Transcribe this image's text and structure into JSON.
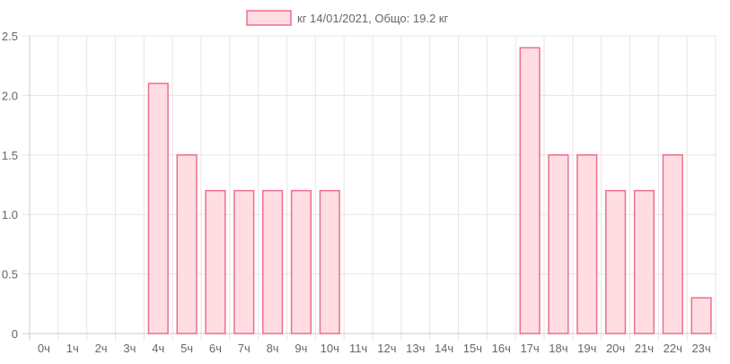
{
  "chart_data": {
    "type": "bar",
    "legend_label": "кг 14/01/2021, Общо: 19.2 кг",
    "legend_position": "top",
    "categories": [
      "0ч",
      "1ч",
      "2ч",
      "3ч",
      "4ч",
      "5ч",
      "6ч",
      "7ч",
      "8ч",
      "9ч",
      "10ч",
      "11ч",
      "12ч",
      "13ч",
      "14ч",
      "15ч",
      "16ч",
      "17ч",
      "18ч",
      "19ч",
      "20ч",
      "21ч",
      "22ч",
      "23ч"
    ],
    "values": [
      0,
      0,
      0,
      0,
      2.1,
      1.5,
      1.2,
      1.2,
      1.2,
      1.2,
      1.2,
      0,
      0,
      0,
      0,
      0,
      0,
      2.4,
      1.5,
      1.5,
      1.2,
      1.2,
      1.5,
      0.3
    ],
    "y_ticks": [
      "0",
      "0.5",
      "1.0",
      "1.5",
      "2.0",
      "2.5"
    ],
    "ylim": [
      0,
      2.5
    ],
    "grid": true,
    "colors": {
      "bar_fill": "#ffdde3",
      "bar_stroke": "#ee6e8a",
      "grid": "#e6e6e6",
      "axis": "#cccccc",
      "text": "#666666"
    }
  }
}
